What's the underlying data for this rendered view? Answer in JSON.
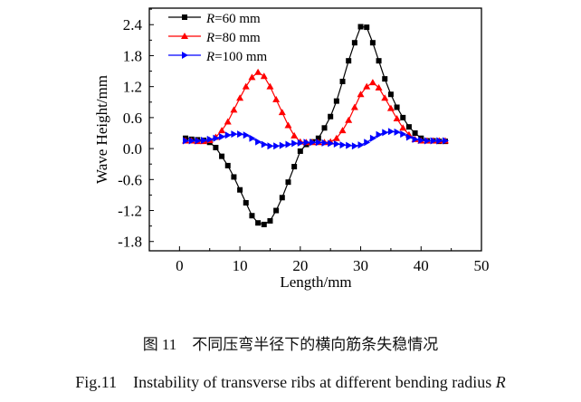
{
  "chart_data": {
    "type": "line",
    "xlabel": "Length/mm",
    "ylabel": "Wave Height/mm",
    "xlim": [
      -5,
      50
    ],
    "ylim": [
      -1.98,
      2.72
    ],
    "xticks": [
      0,
      10,
      20,
      30,
      40,
      50
    ],
    "yticks": [
      -1.8,
      -1.2,
      -0.6,
      0.0,
      0.6,
      1.2,
      1.8,
      2.4
    ],
    "ytick_labels": [
      "-1.8",
      "-1.2",
      "-0.6",
      "0.0",
      "0.6",
      "1.2",
      "1.8",
      "2.4"
    ],
    "grid": false,
    "legend": "top-left",
    "x": [
      1,
      2,
      3,
      4,
      5,
      6,
      7,
      8,
      9,
      10,
      11,
      12,
      13,
      14,
      15,
      16,
      17,
      18,
      19,
      20,
      21,
      22,
      23,
      24,
      25,
      26,
      27,
      28,
      29,
      30,
      31,
      32,
      33,
      34,
      35,
      36,
      37,
      38,
      39,
      40,
      41,
      42,
      43,
      44
    ],
    "series": [
      {
        "name": "R=60 mm",
        "name_italic": "R",
        "name_rest": "=60 mm",
        "color": "#000000",
        "marker": "square",
        "values": [
          0.2,
          0.18,
          0.17,
          0.16,
          0.12,
          0.02,
          -0.15,
          -0.33,
          -0.55,
          -0.8,
          -1.05,
          -1.3,
          -1.44,
          -1.47,
          -1.4,
          -1.2,
          -0.95,
          -0.65,
          -0.35,
          -0.05,
          0.08,
          0.13,
          0.2,
          0.4,
          0.62,
          0.92,
          1.3,
          1.7,
          2.05,
          2.36,
          2.35,
          2.05,
          1.7,
          1.35,
          1.05,
          0.8,
          0.6,
          0.42,
          0.3,
          0.2,
          0.15,
          0.15,
          0.14,
          0.14
        ]
      },
      {
        "name": "R=80 mm",
        "name_italic": "R",
        "name_rest": "=80 mm",
        "color": "#ff0000",
        "marker": "triangle-up",
        "values": [
          0.15,
          0.15,
          0.14,
          0.14,
          0.16,
          0.22,
          0.35,
          0.52,
          0.75,
          0.98,
          1.2,
          1.38,
          1.48,
          1.4,
          1.2,
          0.95,
          0.7,
          0.45,
          0.25,
          0.13,
          0.12,
          0.12,
          0.12,
          0.12,
          0.13,
          0.2,
          0.35,
          0.55,
          0.8,
          1.05,
          1.2,
          1.28,
          1.18,
          0.98,
          0.78,
          0.58,
          0.4,
          0.27,
          0.18,
          0.15,
          0.15,
          0.15,
          0.15,
          0.15
        ]
      },
      {
        "name": "R=100 mm",
        "name_italic": "R",
        "name_rest": "=100 mm",
        "color": "#0000ff",
        "marker": "triangle-right",
        "values": [
          0.15,
          0.15,
          0.15,
          0.16,
          0.18,
          0.2,
          0.23,
          0.26,
          0.28,
          0.28,
          0.26,
          0.2,
          0.13,
          0.08,
          0.05,
          0.05,
          0.06,
          0.08,
          0.1,
          0.11,
          0.12,
          0.12,
          0.12,
          0.11,
          0.1,
          0.09,
          0.07,
          0.06,
          0.05,
          0.07,
          0.12,
          0.2,
          0.27,
          0.31,
          0.33,
          0.32,
          0.28,
          0.22,
          0.18,
          0.16,
          0.15,
          0.15,
          0.15,
          0.15
        ]
      }
    ]
  },
  "caption_cn": "图 11　不同压弯半径下的横向筋条失稳情况",
  "caption_en": "Fig.11　Instability of transverse ribs at different bending radius ",
  "caption_en_var": "R"
}
